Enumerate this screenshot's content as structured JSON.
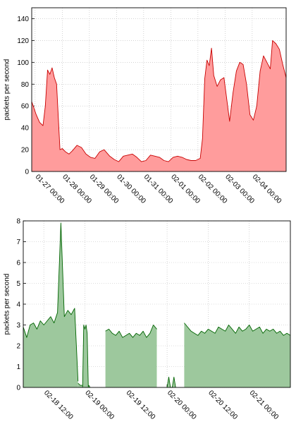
{
  "chart_data": [
    {
      "type": "area",
      "ylabel": "packets per second",
      "xlabel": "",
      "title": "",
      "ylim": [
        0,
        150
      ],
      "yticks": [
        0,
        20,
        40,
        60,
        80,
        100,
        120,
        140
      ],
      "xlim": [
        "01-26 21:00",
        "02-05 06:00"
      ],
      "xticks": [
        "01-27 00:00",
        "01-28 00:00",
        "01-29 00:00",
        "01-30 00:00",
        "01-31 00:00",
        "02-01 00:00",
        "02-02 00:00",
        "02-03 00:00",
        "02-04 00:00"
      ],
      "grid": true,
      "fill_color": "#ff9c9c",
      "line_color": "#c80000",
      "series": [
        {
          "x": [
            "01-26 21:00",
            "01-27 01:00",
            "01-27 04:00",
            "01-27 07:00",
            "01-27 09:00",
            "01-27 11:00",
            "01-27 13:00",
            "01-27 15:00",
            "01-27 17:00",
            "01-27 19:00",
            "01-27 22:00",
            "01-28 00:00",
            "01-28 03:00",
            "01-28 06:00",
            "01-28 09:00",
            "01-28 13:00",
            "01-28 17:00",
            "01-28 21:00",
            "01-29 01:00",
            "01-29 05:00",
            "01-29 09:00",
            "01-29 13:00",
            "01-29 18:00",
            "01-29 22:00",
            "01-30 02:00",
            "01-30 06:00",
            "01-30 10:00",
            "01-30 14:00",
            "01-30 18:00",
            "01-30 22:00",
            "01-31 02:00",
            "01-31 06:00",
            "01-31 10:00",
            "01-31 14:00",
            "01-31 18:00",
            "01-31 22:00",
            "02-01 02:00",
            "02-01 06:00",
            "02-01 10:00",
            "02-01 14:00",
            "02-01 18:00",
            "02-01 22:00",
            "02-02 02:00",
            "02-02 04:00",
            "02-02 06:00",
            "02-02 08:00",
            "02-02 10:00",
            "02-02 12:00",
            "02-02 14:00",
            "02-02 17:00",
            "02-02 20:00",
            "02-02 23:00",
            "02-03 02:00",
            "02-03 04:00",
            "02-03 07:00",
            "02-03 10:00",
            "02-03 13:00",
            "02-03 16:00",
            "02-03 19:00",
            "02-03 22:00",
            "02-04 01:00",
            "02-04 04:00",
            "02-04 07:00",
            "02-04 10:00",
            "02-04 13:00",
            "02-04 16:00",
            "02-04 18:00",
            "02-04 21:00",
            "02-05 00:00",
            "02-05 03:00",
            "02-05 06:00"
          ],
          "y": [
            64,
            52,
            45,
            42,
            60,
            93,
            89,
            95,
            86,
            80,
            20,
            21,
            18,
            16,
            19,
            24,
            22,
            16,
            13,
            12,
            18,
            20,
            14,
            11,
            9,
            14,
            15,
            16,
            13,
            9,
            10,
            15,
            14,
            13,
            10,
            9,
            13,
            14,
            13,
            11,
            10,
            10,
            12,
            30,
            85,
            102,
            97,
            113,
            88,
            78,
            84,
            86,
            62,
            46,
            72,
            92,
            100,
            98,
            80,
            52,
            47,
            60,
            92,
            106,
            100,
            94,
            120,
            117,
            112,
            98,
            86
          ]
        }
      ]
    },
    {
      "type": "area",
      "ylabel": "packets per second",
      "xlabel": "",
      "title": "",
      "ylim": [
        0,
        8
      ],
      "yticks": [
        0,
        1,
        2,
        3,
        4,
        5,
        6,
        7,
        8
      ],
      "xlim": [
        "02-18 06:00",
        "02-21 12:00"
      ],
      "xticks": [
        "02-18 12:00",
        "02-19 00:00",
        "02-19 12:00",
        "02-20 00:00",
        "02-20 12:00",
        "02-21 00:00"
      ],
      "grid": true,
      "fill_color": "#9dc89d",
      "line_color": "#006400",
      "series": [
        {
          "segments": [
            {
              "x": [
                "02-18 06:00",
                "02-18 07:00",
                "02-18 08:00",
                "02-18 09:00",
                "02-18 10:00",
                "02-18 11:00",
                "02-18 12:00",
                "02-18 13:00",
                "02-18 14:00",
                "02-18 15:00",
                "02-18 16:00",
                "02-18 17:00",
                "02-18 18:00",
                "02-18 19:00",
                "02-18 20:00",
                "02-18 21:00",
                "02-18 22:00"
              ],
              "y": [
                2.9,
                2.4,
                3.0,
                3.1,
                2.8,
                3.2,
                3.0,
                3.2,
                3.4,
                3.1,
                3.6,
                7.9,
                3.4,
                3.7,
                3.5,
                3.8,
                0.3
              ]
            },
            {
              "x": [
                "02-18 22:00",
                "02-18 22:40",
                "02-18 23:20",
                "02-19 00:00",
                "02-19 00:40",
                "02-19 01:10",
                "02-19 01:30"
              ],
              "y": [
                0.2,
                0.1,
                0.1,
                0.0,
                0.0,
                0.1,
                0.0
              ]
            },
            {
              "x": [
                "02-18 23:20",
                "02-18 23:40",
                "02-19 00:00",
                "02-19 00:20",
                "02-19 00:40",
                "02-19 01:00"
              ],
              "y": [
                0.0,
                3.0,
                2.8,
                3.0,
                2.6,
                0.0
              ]
            },
            {
              "x": [
                "02-19 06:00",
                "02-19 07:00",
                "02-19 08:00",
                "02-19 09:00",
                "02-19 10:00",
                "02-19 11:00",
                "02-19 12:00",
                "02-19 13:00",
                "02-19 14:00",
                "02-19 15:00",
                "02-19 16:00",
                "02-19 17:00",
                "02-19 18:00",
                "02-19 19:00",
                "02-19 20:00",
                "02-19 21:00"
              ],
              "y": [
                2.7,
                2.8,
                2.6,
                2.5,
                2.7,
                2.4,
                2.5,
                2.6,
                2.4,
                2.6,
                2.5,
                2.7,
                2.4,
                2.6,
                3.0,
                2.8
              ]
            },
            {
              "x": [
                "02-20 00:00",
                "02-20 00:30",
                "02-20 01:00",
                "02-20 01:30",
                "02-20 02:00",
                "02-20 02:30"
              ],
              "y": [
                0.0,
                0.5,
                0.0,
                0.0,
                0.5,
                0.0
              ]
            },
            {
              "x": [
                "02-20 05:00",
                "02-20 06:00",
                "02-20 07:00",
                "02-20 08:00",
                "02-20 09:00",
                "02-20 10:00",
                "02-20 11:00",
                "02-20 12:00",
                "02-20 13:00",
                "02-20 14:00",
                "02-20 15:00",
                "02-20 16:00",
                "02-20 17:00",
                "02-20 18:00",
                "02-20 19:00",
                "02-20 20:00",
                "02-20 21:00",
                "02-20 22:00",
                "02-20 23:00",
                "02-21 00:00",
                "02-21 01:00",
                "02-21 02:00",
                "02-21 03:00",
                "02-21 04:00",
                "02-21 05:00",
                "02-21 06:00",
                "02-21 07:00",
                "02-21 08:00",
                "02-21 09:00",
                "02-21 10:00",
                "02-21 11:00",
                "02-21 12:00"
              ],
              "y": [
                3.1,
                2.9,
                2.7,
                2.6,
                2.5,
                2.7,
                2.6,
                2.8,
                2.7,
                2.6,
                2.9,
                2.8,
                2.7,
                3.0,
                2.8,
                2.6,
                2.9,
                2.7,
                2.8,
                3.0,
                2.7,
                2.8,
                2.9,
                2.6,
                2.8,
                2.7,
                2.8,
                2.6,
                2.7,
                2.5,
                2.6,
                2.5
              ]
            }
          ]
        }
      ]
    }
  ]
}
